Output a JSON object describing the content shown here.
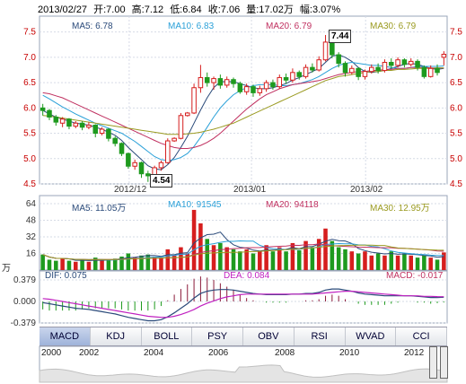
{
  "header": {
    "date": "2013/02/27",
    "open": "开:7.00",
    "high": "高:7.12",
    "low": "低:6.84",
    "close": "收:7.06",
    "volume": "量:17.02万",
    "change": "幅:3.07%"
  },
  "price_ma": [
    {
      "label": "MA5: 6.78",
      "color": "#2a4a7a"
    },
    {
      "label": "MA10: 6.83",
      "color": "#2aa0d8"
    },
    {
      "label": "MA20: 6.79",
      "color": "#c03060"
    },
    {
      "label": "MA30: 6.79",
      "color": "#9a9a20"
    }
  ],
  "volume_ma": [
    {
      "label": "MA5: 11.05万",
      "color": "#2a4a7a"
    },
    {
      "label": "MA10: 91545",
      "color": "#2aa0d8"
    },
    {
      "label": "MA20: 94118",
      "color": "#c03060"
    },
    {
      "label": "MA30: 12.95万",
      "color": "#9a9a20"
    }
  ],
  "macd_labels": [
    {
      "label": "DIF: 0.075",
      "color": "#2a4a7a"
    },
    {
      "label": "DEA: 0.084",
      "color": "#c020c0"
    },
    {
      "label": "MACD: -0.017",
      "color": "#c03060"
    }
  ],
  "annotations": {
    "high": "7.44",
    "low": "4.54"
  },
  "date_labels": [
    "2012/12",
    "2013/01",
    "2013/02"
  ],
  "vol_unit": "万",
  "tabs": [
    "MACD",
    "KDJ",
    "BOLL",
    "PSY",
    "OBV",
    "RSI",
    "WVAD",
    "CCI"
  ],
  "selected_tab": "MACD",
  "years": [
    "2000",
    "2002",
    "2004",
    "2006",
    "2008",
    "2010",
    "2012"
  ],
  "colors": {
    "up": "#d61e1e",
    "down": "#1e9a1e",
    "grid": "#d6dbe6",
    "axis_right": "#c80000"
  },
  "chart_data": [
    {
      "type": "candlestick",
      "title": "",
      "yticks": [
        4.5,
        5.0,
        5.5,
        6.0,
        6.5,
        7.0,
        7.5
      ],
      "ylim": [
        4.5,
        7.6
      ],
      "grid": true,
      "candles": [
        {
          "o": 6.0,
          "c": 5.95,
          "h": 6.08,
          "l": 5.85
        },
        {
          "o": 5.95,
          "c": 5.82,
          "h": 5.98,
          "l": 5.76
        },
        {
          "o": 5.82,
          "c": 5.72,
          "h": 5.86,
          "l": 5.65
        },
        {
          "o": 5.7,
          "c": 5.78,
          "h": 5.82,
          "l": 5.62
        },
        {
          "o": 5.78,
          "c": 5.64,
          "h": 5.8,
          "l": 5.58
        },
        {
          "o": 5.64,
          "c": 5.7,
          "h": 5.74,
          "l": 5.6
        },
        {
          "o": 5.7,
          "c": 5.62,
          "h": 5.74,
          "l": 5.56
        },
        {
          "o": 5.62,
          "c": 5.66,
          "h": 5.72,
          "l": 5.58
        },
        {
          "o": 5.66,
          "c": 5.5,
          "h": 5.68,
          "l": 5.42
        },
        {
          "o": 5.5,
          "c": 5.58,
          "h": 5.62,
          "l": 5.46
        },
        {
          "o": 5.58,
          "c": 5.4,
          "h": 5.6,
          "l": 5.34
        },
        {
          "o": 5.4,
          "c": 5.3,
          "h": 5.44,
          "l": 5.24
        },
        {
          "o": 5.3,
          "c": 5.1,
          "h": 5.32,
          "l": 5.05
        },
        {
          "o": 5.1,
          "c": 4.85,
          "h": 5.12,
          "l": 4.8
        },
        {
          "o": 4.85,
          "c": 4.92,
          "h": 4.98,
          "l": 4.78
        },
        {
          "o": 4.92,
          "c": 4.7,
          "h": 4.94,
          "l": 4.62
        },
        {
          "o": 4.7,
          "c": 4.66,
          "h": 4.76,
          "l": 4.54
        },
        {
          "o": 4.66,
          "c": 4.82,
          "h": 4.86,
          "l": 4.6
        },
        {
          "o": 4.82,
          "c": 4.92,
          "h": 4.96,
          "l": 4.76
        },
        {
          "o": 4.92,
          "c": 5.35,
          "h": 5.4,
          "l": 4.9
        },
        {
          "o": 5.35,
          "c": 5.4,
          "h": 5.42,
          "l": 5.33
        },
        {
          "o": 5.4,
          "c": 5.85,
          "h": 5.9,
          "l": 5.38
        },
        {
          "o": 5.85,
          "c": 5.9,
          "h": 5.92,
          "l": 5.83
        },
        {
          "o": 5.9,
          "c": 6.4,
          "h": 6.48,
          "l": 5.88
        },
        {
          "o": 6.4,
          "c": 6.6,
          "h": 6.85,
          "l": 6.3
        },
        {
          "o": 6.6,
          "c": 6.5,
          "h": 6.7,
          "l": 6.42
        },
        {
          "o": 6.5,
          "c": 6.58,
          "h": 6.62,
          "l": 6.36
        },
        {
          "o": 6.58,
          "c": 6.45,
          "h": 6.66,
          "l": 6.38
        },
        {
          "o": 6.45,
          "c": 6.56,
          "h": 6.62,
          "l": 6.4
        },
        {
          "o": 6.56,
          "c": 6.48,
          "h": 6.6,
          "l": 6.4
        },
        {
          "o": 6.48,
          "c": 6.32,
          "h": 6.52,
          "l": 6.28
        },
        {
          "o": 6.32,
          "c": 6.42,
          "h": 6.48,
          "l": 6.26
        },
        {
          "o": 6.42,
          "c": 6.3,
          "h": 6.46,
          "l": 6.22
        },
        {
          "o": 6.3,
          "c": 6.38,
          "h": 6.44,
          "l": 6.24
        },
        {
          "o": 6.38,
          "c": 6.5,
          "h": 6.55,
          "l": 6.32
        },
        {
          "o": 6.5,
          "c": 6.42,
          "h": 6.56,
          "l": 6.36
        },
        {
          "o": 6.42,
          "c": 6.6,
          "h": 6.66,
          "l": 6.38
        },
        {
          "o": 6.6,
          "c": 6.55,
          "h": 6.68,
          "l": 6.48
        },
        {
          "o": 6.55,
          "c": 6.7,
          "h": 6.78,
          "l": 6.5
        },
        {
          "o": 6.7,
          "c": 6.62,
          "h": 6.74,
          "l": 6.56
        },
        {
          "o": 6.62,
          "c": 6.8,
          "h": 6.86,
          "l": 6.58
        },
        {
          "o": 6.8,
          "c": 6.75,
          "h": 6.88,
          "l": 6.7
        },
        {
          "o": 6.75,
          "c": 6.95,
          "h": 7.02,
          "l": 6.72
        },
        {
          "o": 6.95,
          "c": 7.3,
          "h": 7.44,
          "l": 6.92
        },
        {
          "o": 7.3,
          "c": 7.05,
          "h": 7.32,
          "l": 6.98
        },
        {
          "o": 7.05,
          "c": 6.88,
          "h": 7.1,
          "l": 6.8
        },
        {
          "o": 6.88,
          "c": 6.7,
          "h": 6.92,
          "l": 6.62
        },
        {
          "o": 6.7,
          "c": 6.78,
          "h": 6.84,
          "l": 6.66
        },
        {
          "o": 6.78,
          "c": 6.62,
          "h": 6.8,
          "l": 6.55
        },
        {
          "o": 6.62,
          "c": 6.72,
          "h": 6.76,
          "l": 6.56
        },
        {
          "o": 6.72,
          "c": 6.8,
          "h": 6.86,
          "l": 6.68
        },
        {
          "o": 6.8,
          "c": 6.74,
          "h": 6.88,
          "l": 6.68
        },
        {
          "o": 6.74,
          "c": 6.9,
          "h": 6.96,
          "l": 6.7
        },
        {
          "o": 6.9,
          "c": 6.84,
          "h": 6.98,
          "l": 6.78
        },
        {
          "o": 6.84,
          "c": 6.95,
          "h": 7.0,
          "l": 6.8
        },
        {
          "o": 6.95,
          "c": 6.86,
          "h": 6.98,
          "l": 6.8
        },
        {
          "o": 6.86,
          "c": 6.92,
          "h": 6.98,
          "l": 6.82
        },
        {
          "o": 6.92,
          "c": 6.8,
          "h": 6.96,
          "l": 6.74
        },
        {
          "o": 6.8,
          "c": 6.62,
          "h": 6.84,
          "l": 6.58
        },
        {
          "o": 6.62,
          "c": 6.78,
          "h": 6.84,
          "l": 6.6
        },
        {
          "o": 6.78,
          "c": 6.7,
          "h": 6.86,
          "l": 6.64
        },
        {
          "o": 7.0,
          "c": 7.06,
          "h": 7.12,
          "l": 6.84
        }
      ],
      "ma_series": [
        {
          "name": "MA5",
          "color": "#2a4a7a",
          "values": [
            5.95,
            5.88,
            5.82,
            5.78,
            5.74,
            5.7,
            5.68,
            5.66,
            5.62,
            5.58,
            5.52,
            5.46,
            5.36,
            5.22,
            5.1,
            4.98,
            4.86,
            4.8,
            4.78,
            4.88,
            5.02,
            5.22,
            5.44,
            5.7,
            5.96,
            6.2,
            6.4,
            6.52,
            6.52,
            6.52,
            6.48,
            6.44,
            6.4,
            6.38,
            6.38,
            6.4,
            6.44,
            6.48,
            6.55,
            6.6,
            6.66,
            6.72,
            6.78,
            6.9,
            7.02,
            7.05,
            7.0,
            6.92,
            6.8,
            6.72,
            6.7,
            6.72,
            6.74,
            6.78,
            6.82,
            6.86,
            6.88,
            6.86,
            6.82,
            6.78,
            6.76,
            6.78
          ]
        },
        {
          "name": "MA10",
          "color": "#2aa0d8",
          "values": [
            6.25,
            6.18,
            6.1,
            6.02,
            5.95,
            5.88,
            5.82,
            5.76,
            5.7,
            5.65,
            5.6,
            5.55,
            5.5,
            5.42,
            5.34,
            5.24,
            5.14,
            5.04,
            4.98,
            4.96,
            4.98,
            5.02,
            5.1,
            5.24,
            5.42,
            5.62,
            5.82,
            6.0,
            6.14,
            6.26,
            6.34,
            6.4,
            6.44,
            6.46,
            6.46,
            6.46,
            6.44,
            6.44,
            6.46,
            6.48,
            6.52,
            6.56,
            6.62,
            6.7,
            6.78,
            6.84,
            6.88,
            6.9,
            6.88,
            6.86,
            6.84,
            6.84,
            6.82,
            6.8,
            6.78,
            6.78,
            6.8,
            6.82,
            6.82,
            6.82,
            6.82,
            6.83
          ]
        },
        {
          "name": "MA20",
          "color": "#c03060",
          "values": [
            6.3,
            6.28,
            6.24,
            6.2,
            6.14,
            6.08,
            6.02,
            5.96,
            5.9,
            5.84,
            5.78,
            5.72,
            5.66,
            5.6,
            5.54,
            5.48,
            5.42,
            5.36,
            5.3,
            5.26,
            5.22,
            5.2,
            5.2,
            5.22,
            5.26,
            5.32,
            5.4,
            5.5,
            5.62,
            5.74,
            5.86,
            5.98,
            6.08,
            6.18,
            6.26,
            6.32,
            6.38,
            6.42,
            6.46,
            6.48,
            6.5,
            6.52,
            6.54,
            6.58,
            6.62,
            6.66,
            6.68,
            6.7,
            6.72,
            6.72,
            6.74,
            6.74,
            6.76,
            6.76,
            6.78,
            6.78,
            6.8,
            6.8,
            6.8,
            6.79,
            6.79,
            6.79
          ]
        },
        {
          "name": "MA30",
          "color": "#9a9a20",
          "values": [
            5.85,
            5.84,
            5.82,
            5.8,
            5.78,
            5.76,
            5.74,
            5.72,
            5.7,
            5.68,
            5.66,
            5.64,
            5.62,
            5.6,
            5.58,
            5.56,
            5.54,
            5.52,
            5.5,
            5.48,
            5.48,
            5.48,
            5.49,
            5.5,
            5.52,
            5.55,
            5.58,
            5.62,
            5.66,
            5.7,
            5.76,
            5.82,
            5.88,
            5.94,
            6.0,
            6.06,
            6.12,
            6.18,
            6.24,
            6.3,
            6.36,
            6.42,
            6.48,
            6.54,
            6.58,
            6.62,
            6.64,
            6.66,
            6.68,
            6.7,
            6.72,
            6.72,
            6.74,
            6.74,
            6.76,
            6.76,
            6.77,
            6.78,
            6.78,
            6.78,
            6.79,
            6.79
          ]
        }
      ]
    },
    {
      "type": "bar",
      "title": "",
      "yticks": [
        16,
        32,
        48,
        64
      ],
      "ylim": [
        0,
        64
      ],
      "ylabel": "万",
      "values": [
        15,
        10,
        9,
        11,
        9,
        8,
        10,
        8,
        12,
        9,
        10,
        11,
        13,
        16,
        12,
        14,
        15,
        13,
        12,
        20,
        14,
        22,
        16,
        58,
        45,
        30,
        24,
        26,
        22,
        20,
        18,
        20,
        16,
        18,
        24,
        18,
        22,
        18,
        26,
        19,
        28,
        22,
        30,
        40,
        28,
        22,
        20,
        18,
        16,
        18,
        14,
        16,
        14,
        18,
        14,
        16,
        14,
        12,
        14,
        12,
        10,
        17
      ]
    },
    {
      "type": "bar",
      "title": "",
      "yticks": [
        -0.379,
        0.0,
        0.379
      ],
      "ylim": [
        -0.379,
        0.379
      ],
      "dif": [
        -0.02,
        -0.04,
        -0.06,
        -0.08,
        -0.1,
        -0.12,
        -0.13,
        -0.14,
        -0.16,
        -0.18,
        -0.2,
        -0.22,
        -0.25,
        -0.28,
        -0.3,
        -0.32,
        -0.34,
        -0.34,
        -0.32,
        -0.27,
        -0.2,
        -0.12,
        -0.04,
        0.06,
        0.14,
        0.18,
        0.2,
        0.21,
        0.21,
        0.2,
        0.18,
        0.16,
        0.14,
        0.13,
        0.12,
        0.12,
        0.12,
        0.12,
        0.13,
        0.13,
        0.14,
        0.14,
        0.16,
        0.2,
        0.22,
        0.22,
        0.2,
        0.18,
        0.15,
        0.13,
        0.12,
        0.11,
        0.1,
        0.1,
        0.1,
        0.1,
        0.1,
        0.09,
        0.08,
        0.07,
        0.07,
        0.075
      ],
      "dea": [
        0.05,
        0.04,
        0.02,
        0.0,
        -0.02,
        -0.04,
        -0.06,
        -0.08,
        -0.1,
        -0.12,
        -0.14,
        -0.16,
        -0.18,
        -0.2,
        -0.22,
        -0.24,
        -0.26,
        -0.27,
        -0.28,
        -0.28,
        -0.26,
        -0.23,
        -0.19,
        -0.14,
        -0.08,
        -0.03,
        0.01,
        0.05,
        0.08,
        0.1,
        0.12,
        0.13,
        0.13,
        0.13,
        0.13,
        0.13,
        0.13,
        0.13,
        0.13,
        0.13,
        0.13,
        0.13,
        0.14,
        0.15,
        0.16,
        0.17,
        0.18,
        0.18,
        0.17,
        0.16,
        0.15,
        0.14,
        0.13,
        0.12,
        0.11,
        0.1,
        0.1,
        0.1,
        0.09,
        0.09,
        0.085,
        0.084
      ],
      "macd_hist": [
        -0.14,
        -0.16,
        -0.16,
        -0.16,
        -0.16,
        -0.16,
        -0.14,
        -0.12,
        -0.12,
        -0.12,
        -0.12,
        -0.12,
        -0.14,
        -0.16,
        -0.16,
        -0.16,
        -0.16,
        -0.14,
        -0.08,
        0.02,
        0.12,
        0.22,
        0.3,
        0.4,
        0.44,
        0.42,
        0.38,
        0.32,
        0.26,
        0.2,
        0.12,
        0.06,
        0.02,
        0.0,
        -0.02,
        -0.02,
        -0.02,
        -0.02,
        0.0,
        0.0,
        0.02,
        0.02,
        0.04,
        0.1,
        0.12,
        0.1,
        0.04,
        0.0,
        -0.04,
        -0.06,
        -0.06,
        -0.06,
        -0.06,
        -0.04,
        -0.02,
        0.0,
        0.0,
        -0.02,
        -0.02,
        -0.04,
        -0.03,
        -0.017
      ]
    }
  ]
}
